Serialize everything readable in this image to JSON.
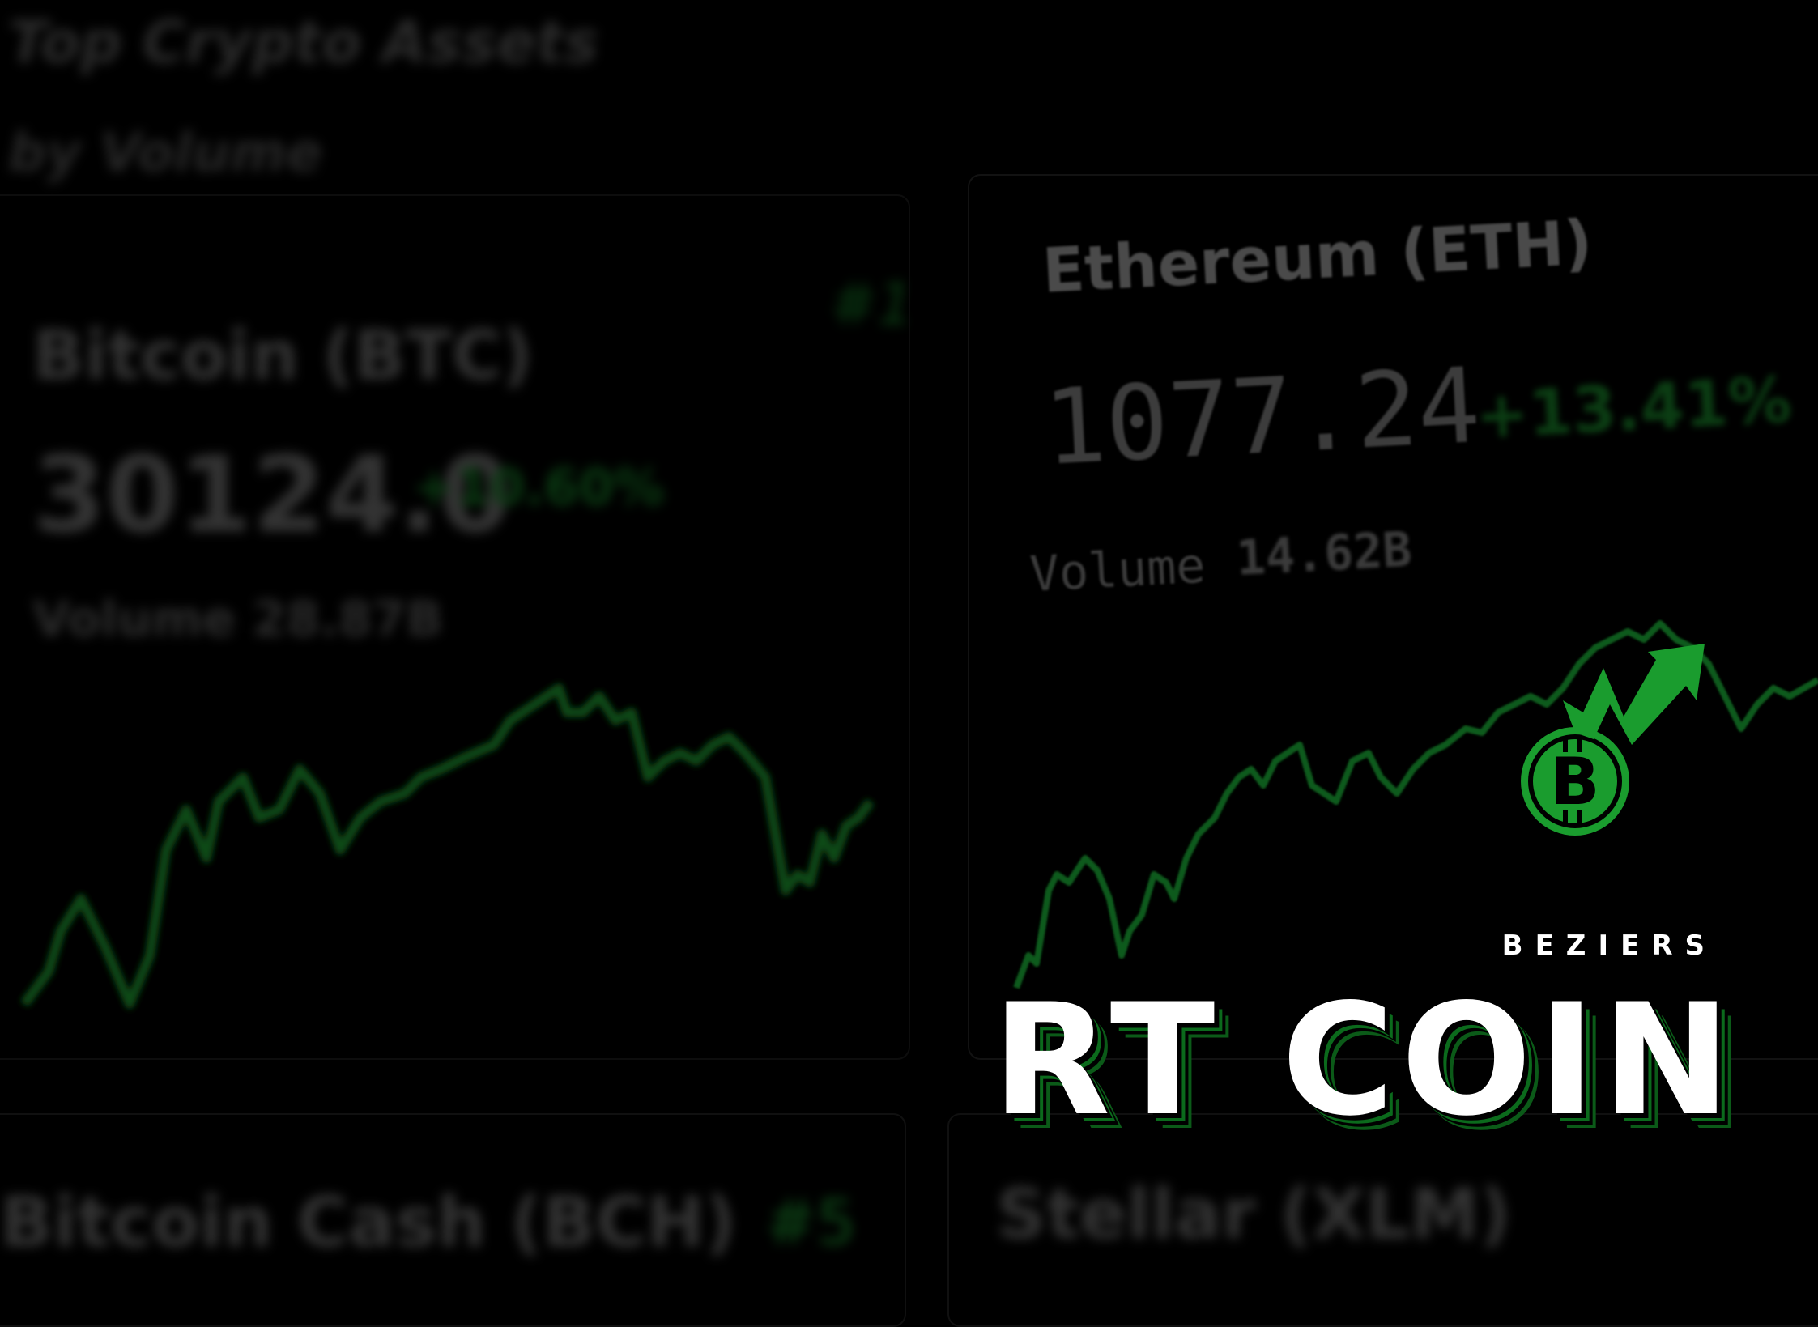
{
  "background": {
    "header_blur_1": "Top Crypto Assets",
    "header_blur_2": "by Volume",
    "cards": [
      {
        "name": "Bitcoin (BTC)",
        "rank": "#1",
        "price": "30124.0",
        "change": "+10.60%",
        "volume": "Volume 28.87B"
      },
      {
        "name": "Ethereum (ETH)",
        "price": "1077.24",
        "change": "+13.41%",
        "volume_label": "Volume",
        "volume_value": "14.62B"
      },
      {
        "name": "Bitcoin Cash (BCH)",
        "rank": "#5"
      },
      {
        "name": "Stellar (XLM)"
      }
    ]
  },
  "brand": {
    "subtitle": "BEZIERS",
    "title": "RT COIN"
  },
  "logo": {
    "icon": "bitcoin-growth-arrow-icon",
    "accent": "#1a9c2e"
  },
  "colors": {
    "background": "#000000",
    "accent_green": "#1a9c2e",
    "line_green": "#0c5a1a"
  }
}
